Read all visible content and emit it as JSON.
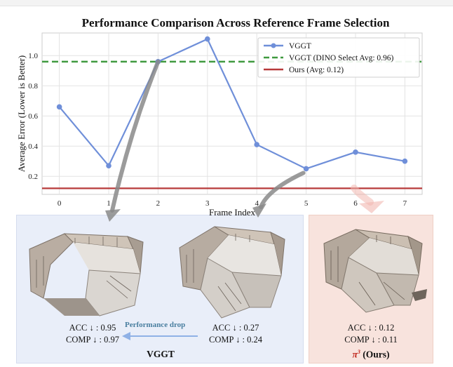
{
  "chart_data": {
    "type": "line",
    "title": "Performance Comparison Across Reference Frame Selection",
    "xlabel": "Frame Index",
    "ylabel": "Average Error (Lower is Better)",
    "x": [
      0,
      1,
      2,
      3,
      4,
      5,
      6,
      7
    ],
    "xlim": [
      -0.35,
      7.35
    ],
    "ylim": [
      0.08,
      1.15
    ],
    "x_ticks": [
      "0",
      "1",
      "2",
      "3",
      "4",
      "5",
      "6",
      "7"
    ],
    "y_ticks": [
      0.2,
      0.4,
      0.6,
      0.8,
      1.0
    ],
    "y_tick_labels": [
      "0.2",
      "0.4",
      "0.6",
      "0.8",
      "1.0"
    ],
    "grid": true,
    "legend_position": "top-right",
    "series": [
      {
        "name": "VGGT",
        "type": "line",
        "style": "solid-with-markers",
        "color": "#6f8fd9",
        "values": [
          0.66,
          0.27,
          0.96,
          1.11,
          0.41,
          0.25,
          0.36,
          0.3
        ]
      },
      {
        "name": "VGGT (DINO Select Avg: 0.96)",
        "type": "hline",
        "style": "dashed",
        "color": "#3f9a3f",
        "value": 0.96
      },
      {
        "name": "Ours (Avg: 0.12)",
        "type": "hline",
        "style": "solid",
        "color": "#b73a3a",
        "value": 0.12
      }
    ]
  },
  "panels": {
    "vggt": {
      "label": "VGGT",
      "left_metrics": {
        "acc": "ACC ↓ : 0.95",
        "comp": "COMP ↓ : 0.97"
      },
      "right_metrics": {
        "acc": "ACC ↓ : 0.27",
        "comp": "COMP ↓ : 0.24"
      },
      "arrow_label": "Performance drop",
      "arrow_color": "#8fb1e6"
    },
    "ours": {
      "label_symbol": "π",
      "label_sup": "3",
      "label_rest": " (Ours)",
      "metrics": {
        "acc": "ACC ↓ : 0.12",
        "comp": "COMP ↓ : 0.11"
      }
    }
  },
  "colors": {
    "vggt_panel_bg": "#e9eef9",
    "ours_panel_bg": "#f8e3dd",
    "gray_arrow": "#8a8a8a",
    "pink_arrow": "#f2b8b0"
  }
}
